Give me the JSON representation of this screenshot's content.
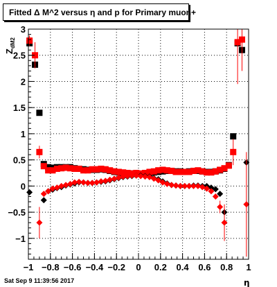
{
  "title": "Fitted Δ M^2 versus η and p for Primary muon+",
  "footer": "Sat Sep  9 11:39:56 2017",
  "chart_data": {
    "type": "scatter",
    "xlabel": "η",
    "ylabel_main": "Z",
    "ylabel_sub": "dM2",
    "xlim": [
      -1,
      1
    ],
    "ylim": [
      -1.4,
      3
    ],
    "x_ticks": [
      -1,
      -0.8,
      -0.6,
      -0.4,
      -0.2,
      0,
      0.2,
      0.4,
      0.6,
      0.8,
      1
    ],
    "x_tick_labels": [
      "−1",
      "−0.8",
      "−0.6",
      "−0.4",
      "−0.2",
      "0",
      "0.2",
      "0.4",
      "0.6",
      "0.8",
      "1"
    ],
    "y_ticks": [
      -1,
      -0.5,
      0,
      0.5,
      1,
      1.5,
      2,
      2.5,
      3
    ],
    "y_tick_labels": [
      "−1",
      "−0.5",
      "0",
      "0.5",
      "1",
      "1.5",
      "2",
      "2.5",
      "3"
    ],
    "grid": true,
    "colors": {
      "black": "#000000",
      "red": "#ff0000"
    },
    "series": [
      {
        "marker": "square",
        "color": "#000000",
        "points": [
          {
            "x": -0.99,
            "y": 2.73
          },
          {
            "x": -0.94,
            "y": 2.32
          },
          {
            "x": -0.9,
            "y": 1.4
          },
          {
            "x": -0.86,
            "y": 0.42
          },
          {
            "x": -0.82,
            "y": 0.36
          },
          {
            "x": -0.78,
            "y": 0.35
          },
          {
            "x": -0.74,
            "y": 0.36
          },
          {
            "x": -0.7,
            "y": 0.36
          },
          {
            "x": -0.66,
            "y": 0.36
          },
          {
            "x": -0.62,
            "y": 0.36
          },
          {
            "x": -0.58,
            "y": 0.34
          },
          {
            "x": -0.54,
            "y": 0.33
          },
          {
            "x": -0.5,
            "y": 0.32
          },
          {
            "x": -0.46,
            "y": 0.31
          },
          {
            "x": -0.42,
            "y": 0.31
          },
          {
            "x": -0.38,
            "y": 0.31
          },
          {
            "x": -0.34,
            "y": 0.32
          },
          {
            "x": -0.3,
            "y": 0.31
          },
          {
            "x": -0.26,
            "y": 0.29
          },
          {
            "x": -0.22,
            "y": 0.27
          },
          {
            "x": -0.18,
            "y": 0.26
          },
          {
            "x": -0.14,
            "y": 0.25
          },
          {
            "x": -0.1,
            "y": 0.24
          },
          {
            "x": -0.06,
            "y": 0.24
          },
          {
            "x": -0.02,
            "y": 0.23
          },
          {
            "x": 0.02,
            "y": 0.23
          },
          {
            "x": 0.06,
            "y": 0.24
          },
          {
            "x": 0.1,
            "y": 0.25
          },
          {
            "x": 0.14,
            "y": 0.26
          },
          {
            "x": 0.18,
            "y": 0.27
          },
          {
            "x": 0.22,
            "y": 0.28
          },
          {
            "x": 0.26,
            "y": 0.29
          },
          {
            "x": 0.3,
            "y": 0.29
          },
          {
            "x": 0.34,
            "y": 0.28
          },
          {
            "x": 0.38,
            "y": 0.28
          },
          {
            "x": 0.42,
            "y": 0.27
          },
          {
            "x": 0.46,
            "y": 0.28
          },
          {
            "x": 0.5,
            "y": 0.29
          },
          {
            "x": 0.54,
            "y": 0.29
          },
          {
            "x": 0.58,
            "y": 0.28
          },
          {
            "x": 0.62,
            "y": 0.27
          },
          {
            "x": 0.66,
            "y": 0.27
          },
          {
            "x": 0.7,
            "y": 0.28
          },
          {
            "x": 0.74,
            "y": 0.3
          },
          {
            "x": 0.78,
            "y": 0.33
          },
          {
            "x": 0.82,
            "y": 0.4
          },
          {
            "x": 0.86,
            "y": 0.95
          },
          {
            "x": 0.9,
            "y": 2.73
          },
          {
            "x": 0.94,
            "y": 2.6
          }
        ]
      },
      {
        "marker": "square",
        "color": "#ff0000",
        "points": [
          {
            "x": -0.99,
            "y": 2.78,
            "err": 0.1
          },
          {
            "x": -0.94,
            "y": 2.5,
            "err": 0.25
          },
          {
            "x": -0.9,
            "y": 0.65,
            "err": 0.12
          },
          {
            "x": -0.86,
            "y": 0.38,
            "err": 0.03
          },
          {
            "x": -0.82,
            "y": 0.3
          },
          {
            "x": -0.78,
            "y": 0.3
          },
          {
            "x": -0.74,
            "y": 0.33
          },
          {
            "x": -0.7,
            "y": 0.34
          },
          {
            "x": -0.66,
            "y": 0.35
          },
          {
            "x": -0.62,
            "y": 0.34
          },
          {
            "x": -0.58,
            "y": 0.33
          },
          {
            "x": -0.54,
            "y": 0.33
          },
          {
            "x": -0.5,
            "y": 0.3
          },
          {
            "x": -0.46,
            "y": 0.3
          },
          {
            "x": -0.42,
            "y": 0.32
          },
          {
            "x": -0.38,
            "y": 0.32
          },
          {
            "x": -0.34,
            "y": 0.33
          },
          {
            "x": -0.3,
            "y": 0.32
          },
          {
            "x": -0.26,
            "y": 0.3
          },
          {
            "x": -0.22,
            "y": 0.28
          },
          {
            "x": -0.18,
            "y": 0.27
          },
          {
            "x": -0.14,
            "y": 0.26
          },
          {
            "x": -0.1,
            "y": 0.25
          },
          {
            "x": -0.06,
            "y": 0.24
          },
          {
            "x": -0.02,
            "y": 0.25
          },
          {
            "x": 0.02,
            "y": 0.24
          },
          {
            "x": 0.06,
            "y": 0.25
          },
          {
            "x": 0.1,
            "y": 0.27
          },
          {
            "x": 0.14,
            "y": 0.28
          },
          {
            "x": 0.18,
            "y": 0.3
          },
          {
            "x": 0.22,
            "y": 0.31
          },
          {
            "x": 0.26,
            "y": 0.3
          },
          {
            "x": 0.3,
            "y": 0.29
          },
          {
            "x": 0.34,
            "y": 0.27
          },
          {
            "x": 0.38,
            "y": 0.27
          },
          {
            "x": 0.42,
            "y": 0.27
          },
          {
            "x": 0.46,
            "y": 0.27
          },
          {
            "x": 0.5,
            "y": 0.29
          },
          {
            "x": 0.54,
            "y": 0.3
          },
          {
            "x": 0.58,
            "y": 0.28
          },
          {
            "x": 0.62,
            "y": 0.26
          },
          {
            "x": 0.66,
            "y": 0.26
          },
          {
            "x": 0.7,
            "y": 0.28
          },
          {
            "x": 0.74,
            "y": 0.31
          },
          {
            "x": 0.78,
            "y": 0.34
          },
          {
            "x": 0.82,
            "y": 0.39,
            "err": 0.05
          },
          {
            "x": 0.86,
            "y": 0.65,
            "err": 0.25
          },
          {
            "x": 0.9,
            "y": 2.75,
            "err": 0.8
          },
          {
            "x": 0.94,
            "y": 2.8,
            "err": 0.6
          }
        ]
      },
      {
        "marker": "diamond",
        "color": "#000000",
        "points": [
          {
            "x": -0.99,
            "y": -0.12
          },
          {
            "x": -0.86,
            "y": -0.27
          },
          {
            "x": -0.82,
            "y": -0.1
          },
          {
            "x": -0.78,
            "y": -0.07
          },
          {
            "x": -0.74,
            "y": -0.04
          },
          {
            "x": -0.7,
            "y": -0.02
          },
          {
            "x": -0.66,
            "y": 0.01
          },
          {
            "x": -0.62,
            "y": 0.03
          },
          {
            "x": -0.58,
            "y": 0.05
          },
          {
            "x": -0.54,
            "y": 0.07
          },
          {
            "x": -0.5,
            "y": 0.07
          },
          {
            "x": -0.46,
            "y": 0.06
          },
          {
            "x": -0.42,
            "y": 0.06
          },
          {
            "x": -0.38,
            "y": 0.07
          },
          {
            "x": -0.34,
            "y": 0.08
          },
          {
            "x": -0.3,
            "y": 0.09
          },
          {
            "x": -0.26,
            "y": 0.11
          },
          {
            "x": -0.22,
            "y": 0.13
          },
          {
            "x": -0.18,
            "y": 0.15
          },
          {
            "x": -0.14,
            "y": 0.17
          },
          {
            "x": -0.1,
            "y": 0.18
          },
          {
            "x": -0.06,
            "y": 0.19
          },
          {
            "x": -0.02,
            "y": 0.2
          },
          {
            "x": 0.02,
            "y": 0.2
          },
          {
            "x": 0.06,
            "y": 0.19
          },
          {
            "x": 0.1,
            "y": 0.18
          },
          {
            "x": 0.14,
            "y": 0.15
          },
          {
            "x": 0.18,
            "y": 0.13
          },
          {
            "x": 0.22,
            "y": 0.09
          },
          {
            "x": 0.26,
            "y": 0.05
          },
          {
            "x": 0.3,
            "y": 0.02
          },
          {
            "x": 0.34,
            "y": 0.01
          },
          {
            "x": 0.38,
            "y": 0.0
          },
          {
            "x": 0.42,
            "y": 0.0
          },
          {
            "x": 0.46,
            "y": 0.0
          },
          {
            "x": 0.5,
            "y": 0.01
          },
          {
            "x": 0.54,
            "y": 0.01
          },
          {
            "x": 0.58,
            "y": 0.0
          },
          {
            "x": 0.62,
            "y": 0.0
          },
          {
            "x": 0.66,
            "y": -0.03
          },
          {
            "x": 0.7,
            "y": -0.06
          },
          {
            "x": 0.74,
            "y": -0.15
          },
          {
            "x": 0.78,
            "y": -0.5
          },
          {
            "x": 0.98,
            "y": 0.45
          }
        ]
      },
      {
        "marker": "diamond",
        "color": "#ff0000",
        "points": [
          {
            "x": -0.9,
            "y": -0.7,
            "err": 0.3
          },
          {
            "x": -0.86,
            "y": -0.15
          },
          {
            "x": -0.82,
            "y": -0.1
          },
          {
            "x": -0.78,
            "y": -0.05
          },
          {
            "x": -0.74,
            "y": -0.03
          },
          {
            "x": -0.7,
            "y": 0.0
          },
          {
            "x": -0.66,
            "y": 0.02
          },
          {
            "x": -0.62,
            "y": 0.04
          },
          {
            "x": -0.58,
            "y": 0.07
          },
          {
            "x": -0.54,
            "y": 0.08
          },
          {
            "x": -0.5,
            "y": 0.07
          },
          {
            "x": -0.46,
            "y": 0.06
          },
          {
            "x": -0.42,
            "y": 0.06
          },
          {
            "x": -0.38,
            "y": 0.07
          },
          {
            "x": -0.34,
            "y": 0.09
          },
          {
            "x": -0.3,
            "y": 0.1
          },
          {
            "x": -0.26,
            "y": 0.12
          },
          {
            "x": -0.22,
            "y": 0.14
          },
          {
            "x": -0.18,
            "y": 0.16
          },
          {
            "x": -0.14,
            "y": 0.18
          },
          {
            "x": -0.1,
            "y": 0.19
          },
          {
            "x": -0.06,
            "y": 0.2
          },
          {
            "x": -0.02,
            "y": 0.2
          },
          {
            "x": 0.02,
            "y": 0.19
          },
          {
            "x": 0.06,
            "y": 0.18
          },
          {
            "x": 0.1,
            "y": 0.17
          },
          {
            "x": 0.14,
            "y": 0.14
          },
          {
            "x": 0.18,
            "y": 0.11
          },
          {
            "x": 0.22,
            "y": 0.07
          },
          {
            "x": 0.26,
            "y": 0.04
          },
          {
            "x": 0.3,
            "y": 0.02
          },
          {
            "x": 0.34,
            "y": 0.01
          },
          {
            "x": 0.38,
            "y": 0.0
          },
          {
            "x": 0.42,
            "y": 0.0
          },
          {
            "x": 0.46,
            "y": 0.0
          },
          {
            "x": 0.5,
            "y": 0.0
          },
          {
            "x": 0.54,
            "y": 0.0
          },
          {
            "x": 0.58,
            "y": -0.02
          },
          {
            "x": 0.62,
            "y": -0.05
          },
          {
            "x": 0.66,
            "y": -0.1
          },
          {
            "x": 0.7,
            "y": -0.2
          },
          {
            "x": 0.74,
            "y": -0.4,
            "err": 0.12
          },
          {
            "x": 0.78,
            "y": -0.7,
            "err": 0.35
          },
          {
            "x": 0.98,
            "y": -0.35,
            "err": 1.0
          }
        ]
      }
    ]
  }
}
